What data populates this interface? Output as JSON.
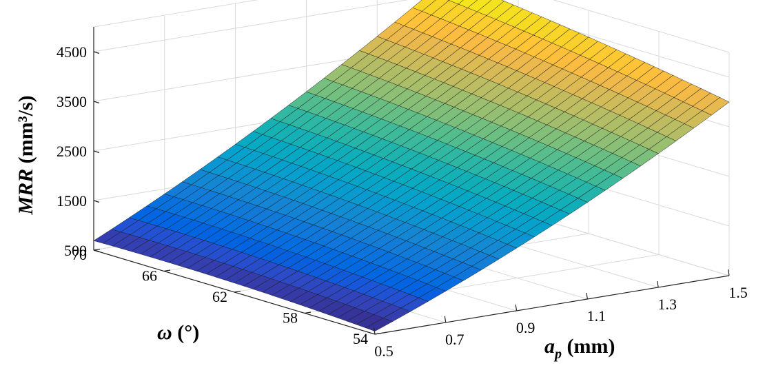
{
  "chart_data": {
    "type": "surface",
    "title": "",
    "zlabel": "MRR (mm³/s)",
    "zlabel_italic": "MRR",
    "zlabel_unit": " (mm³/s)",
    "xlabel": "a_p (mm)",
    "xlabel_main": "a",
    "xlabel_sub": "p",
    "xlabel_unit": " (mm)",
    "ylabel": "ω (°)",
    "ylabel_main": "ω",
    "ylabel_unit": " (°)",
    "x_ticks": [
      "0.5",
      "0.7",
      "0.9",
      "1.1",
      "1.3",
      "1.5"
    ],
    "y_ticks": [
      "54",
      "58",
      "62",
      "66",
      "70"
    ],
    "z_ticks": [
      "500",
      "1500",
      "2500",
      "3500",
      "4500"
    ],
    "xlim": [
      0.5,
      1.5
    ],
    "ylim": [
      54,
      70
    ],
    "zlim": [
      500,
      4500
    ],
    "grid": true,
    "colormap": "parula",
    "surface_corners": [
      {
        "a_p": 0.5,
        "omega": 70,
        "MRR": 690
      },
      {
        "a_p": 0.5,
        "omega": 54,
        "MRR": 560
      },
      {
        "a_p": 1.5,
        "omega": 54,
        "MRR": 4000
      },
      {
        "a_p": 1.5,
        "omega": 70,
        "MRR": 4800
      }
    ],
    "mesh": {
      "a_p_divisions": 20,
      "omega_divisions": 30
    }
  }
}
